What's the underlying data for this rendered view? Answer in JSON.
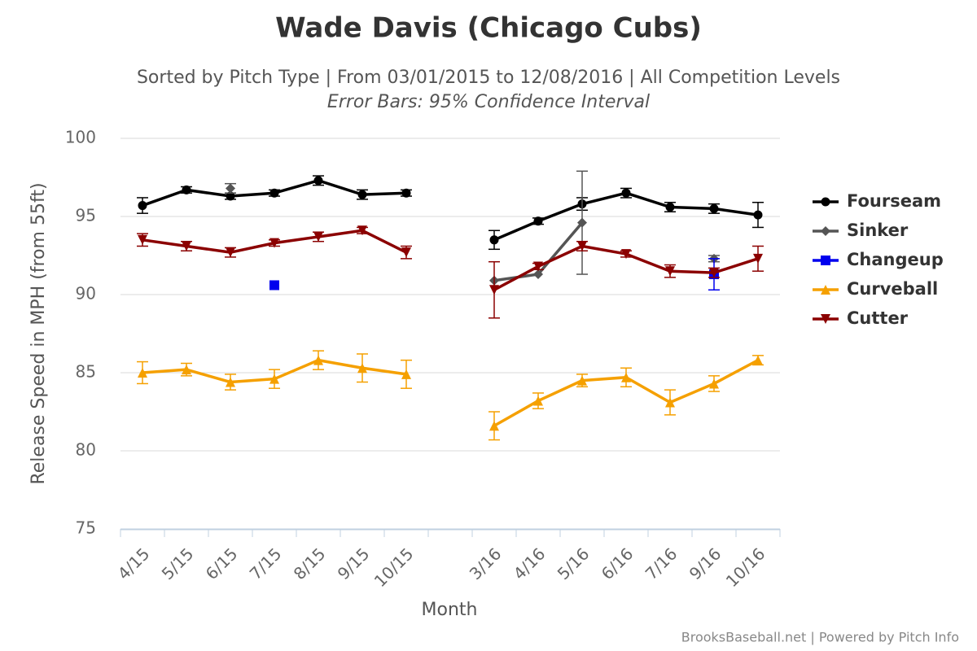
{
  "chart_data": {
    "type": "line",
    "title": "Wade Davis (Chicago Cubs)",
    "subtitle": "Sorted by Pitch Type | From 03/01/2015 to 12/08/2016 | All Competition Levels",
    "subtitle2": "Error Bars: 95% Confidence Interval",
    "x_label": "Month",
    "y_label": "Release Speed in MPH (from 55ft)",
    "credit": "BrooksBaseball.net | Powered by Pitch Info",
    "categories": [
      "4/15",
      "5/15",
      "6/15",
      "7/15",
      "8/15",
      "9/15",
      "10/15",
      null,
      "3/16",
      "4/16",
      "5/16",
      "6/16",
      "7/16",
      "9/16",
      "10/16"
    ],
    "ylim": [
      75,
      100
    ],
    "yticks": [
      75,
      80,
      85,
      90,
      95,
      100
    ],
    "grid": true,
    "series": [
      {
        "name": "Fourseam",
        "color": "#000000",
        "marker": "circle",
        "values": [
          95.7,
          96.7,
          96.3,
          96.5,
          97.3,
          96.4,
          96.5,
          null,
          93.5,
          94.7,
          95.8,
          96.5,
          95.6,
          95.5,
          95.1
        ],
        "errors": [
          0.5,
          0.2,
          0.2,
          0.2,
          0.3,
          0.3,
          0.2,
          null,
          0.6,
          0.2,
          0.4,
          0.3,
          0.3,
          0.3,
          0.8
        ]
      },
      {
        "name": "Sinker",
        "color": "#555555",
        "marker": "diamond",
        "values": [
          null,
          null,
          96.8,
          null,
          null,
          null,
          null,
          null,
          90.9,
          91.3,
          94.6,
          null,
          null,
          92.3,
          null
        ],
        "errors": [
          null,
          null,
          0.3,
          null,
          null,
          null,
          null,
          null,
          null,
          null,
          3.3,
          null,
          null,
          0.2,
          null
        ]
      },
      {
        "name": "Changeup",
        "color": "#0000ee",
        "marker": "square",
        "values": [
          null,
          null,
          null,
          90.6,
          null,
          null,
          null,
          null,
          null,
          null,
          null,
          null,
          null,
          91.3,
          null
        ],
        "errors": [
          null,
          null,
          null,
          null,
          null,
          null,
          null,
          null,
          null,
          null,
          null,
          null,
          null,
          1.0,
          null
        ]
      },
      {
        "name": "Curveball",
        "color": "#f5a000",
        "marker": "triangle",
        "values": [
          85.0,
          85.2,
          84.4,
          84.6,
          85.8,
          85.3,
          84.9,
          null,
          81.6,
          83.2,
          84.5,
          84.7,
          83.1,
          84.3,
          85.8
        ],
        "errors": [
          0.7,
          0.4,
          0.5,
          0.6,
          0.6,
          0.9,
          0.9,
          null,
          0.9,
          0.5,
          0.4,
          0.6,
          0.8,
          0.5,
          0.3
        ]
      },
      {
        "name": "Cutter",
        "color": "#8b0000",
        "marker": "triangle-down",
        "values": [
          93.5,
          93.1,
          92.7,
          93.3,
          93.7,
          94.1,
          92.7,
          null,
          90.3,
          91.8,
          93.1,
          92.6,
          91.5,
          91.4,
          92.3
        ],
        "errors": [
          0.4,
          0.3,
          0.3,
          0.2,
          0.3,
          0.2,
          0.4,
          null,
          1.8,
          0.2,
          0.3,
          0.2,
          0.4,
          0.3,
          0.8
        ]
      }
    ]
  }
}
